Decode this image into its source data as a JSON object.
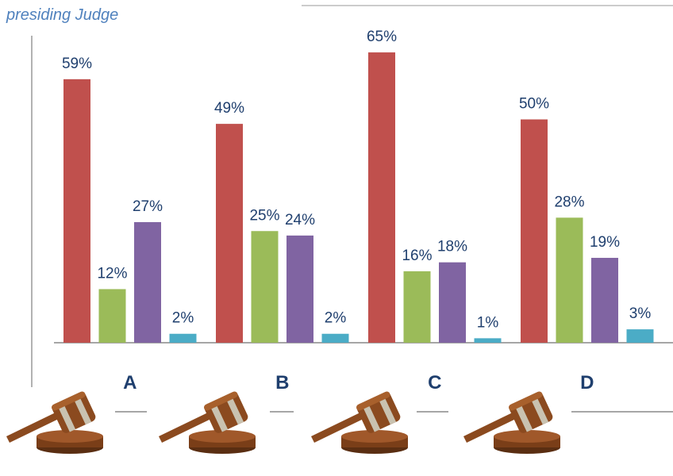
{
  "chart_data": {
    "type": "bar",
    "title": "presiding Judge",
    "categories": [
      "A",
      "B",
      "C",
      "D"
    ],
    "series": [
      {
        "color": "#c0504d",
        "values": [
          59,
          49,
          65,
          50
        ],
        "value_labels": [
          "59%",
          "49%",
          "65%",
          "50%"
        ]
      },
      {
        "color": "#9bbb59",
        "values": [
          12,
          25,
          16,
          28
        ],
        "value_labels": [
          "12%",
          "25%",
          "16%",
          "28%"
        ]
      },
      {
        "color": "#8064a2",
        "values": [
          27,
          24,
          18,
          19
        ],
        "value_labels": [
          "27%",
          "24%",
          "18%",
          "19%"
        ]
      },
      {
        "color": "#4bacc6",
        "values": [
          2,
          2,
          1,
          3
        ],
        "value_labels": [
          "2%",
          "2%",
          "1%",
          "3%"
        ]
      }
    ]
  }
}
